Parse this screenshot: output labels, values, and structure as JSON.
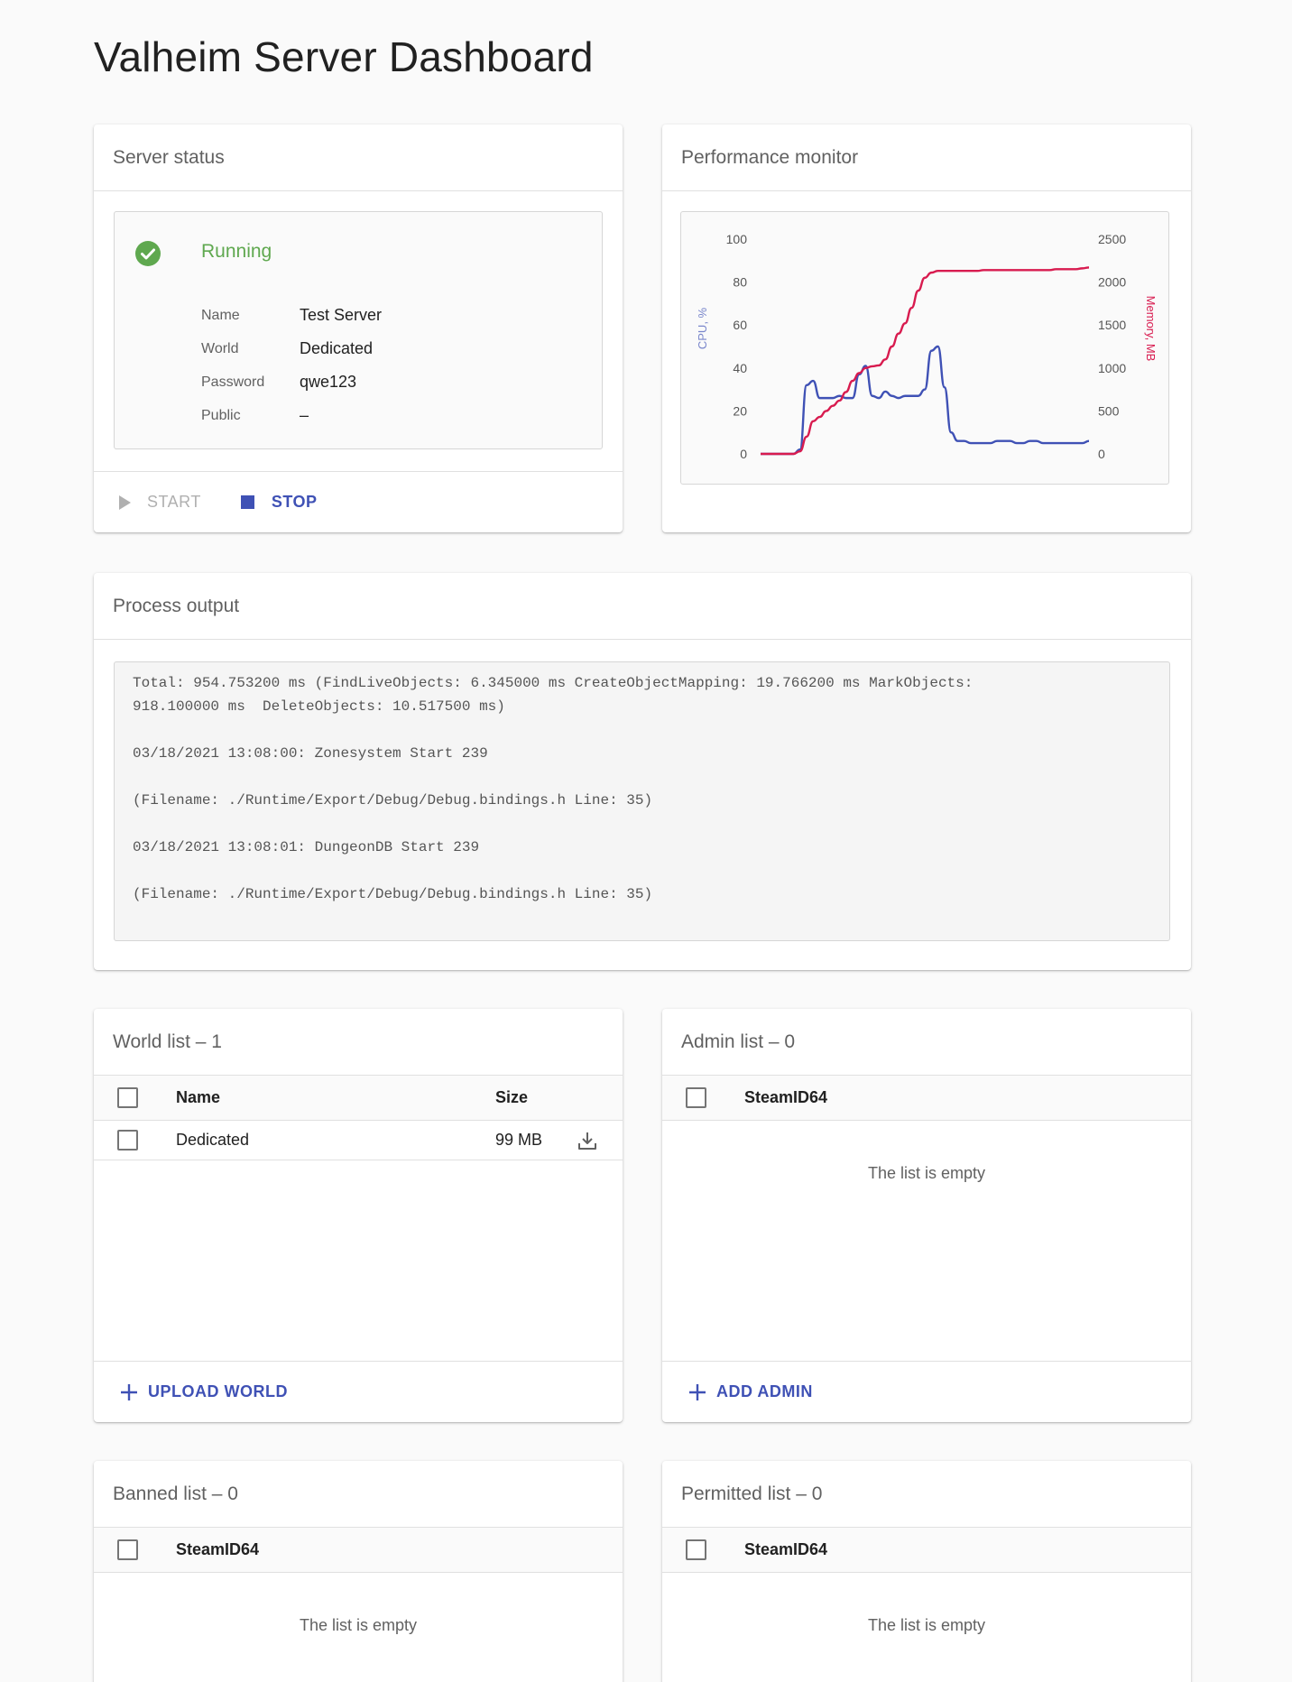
{
  "page": {
    "title": "Valheim Server Dashboard"
  },
  "server_status": {
    "header": "Server status",
    "status_text": "Running",
    "status_color": "#5fa84f",
    "info": [
      {
        "label": "Name",
        "value": "Test Server"
      },
      {
        "label": "World",
        "value": "Dedicated"
      },
      {
        "label": "Password",
        "value": "qwe123"
      },
      {
        "label": "Public",
        "value": "–"
      }
    ],
    "start_label": "START",
    "stop_label": "STOP"
  },
  "performance": {
    "header": "Performance monitor"
  },
  "chart_data": {
    "type": "line",
    "title": "",
    "ylabel": "CPU, %",
    "y2label": "Memory, MB",
    "ylim": [
      0,
      100
    ],
    "y2lim": [
      0,
      2500
    ],
    "yticks": [
      "0",
      "20",
      "40",
      "60",
      "80",
      "100"
    ],
    "y2ticks": [
      "0",
      "500",
      "1000",
      "1500",
      "2000",
      "2500"
    ],
    "grid": false,
    "series": [
      {
        "axis": "left",
        "color": "#3f51b5",
        "x": [
          0,
          1,
          2,
          3,
          4,
          5,
          6,
          7,
          8,
          9,
          10,
          11,
          12,
          13,
          14,
          15,
          16,
          17,
          18,
          19,
          20,
          21,
          22,
          23,
          24,
          25,
          26,
          27,
          28,
          29,
          30,
          31,
          32,
          33,
          34,
          35,
          36,
          37,
          38,
          39,
          40,
          41,
          42,
          43,
          44,
          45,
          46,
          47,
          48,
          49,
          50
        ],
        "values": [
          0,
          0,
          0,
          0,
          0,
          0,
          2,
          32,
          34,
          26,
          26,
          26,
          27,
          26,
          26,
          37,
          41,
          27,
          26,
          29,
          27,
          26,
          27,
          27,
          27,
          30,
          48,
          50,
          31,
          10,
          6,
          6,
          5,
          5,
          5,
          5,
          6,
          6,
          6,
          5,
          5,
          6,
          6,
          5,
          5,
          5,
          5,
          5,
          5,
          5,
          6
        ]
      },
      {
        "axis": "right",
        "color": "#d81b4f",
        "x": [
          0,
          1,
          2,
          3,
          4,
          5,
          6,
          7,
          8,
          9,
          10,
          11,
          12,
          13,
          14,
          15,
          16,
          17,
          18,
          19,
          20,
          21,
          22,
          23,
          24,
          25,
          26,
          27,
          28,
          29,
          30,
          31,
          32,
          33,
          34,
          35,
          36,
          37,
          38,
          39,
          40,
          41,
          42,
          43,
          44,
          45,
          46,
          47,
          48,
          49,
          50
        ],
        "values": [
          0,
          0,
          0,
          0,
          0,
          0,
          30,
          200,
          380,
          430,
          500,
          560,
          620,
          720,
          850,
          940,
          1000,
          1020,
          1030,
          1100,
          1250,
          1400,
          1520,
          1700,
          1900,
          2050,
          2110,
          2130,
          2130,
          2130,
          2130,
          2130,
          2130,
          2130,
          2140,
          2140,
          2140,
          2140,
          2140,
          2140,
          2140,
          2140,
          2140,
          2140,
          2140,
          2150,
          2150,
          2150,
          2150,
          2160,
          2170
        ]
      }
    ]
  },
  "process_output": {
    "header": "Process output",
    "text": "Total: 954.753200 ms (FindLiveObjects: 6.345000 ms CreateObjectMapping: 19.766200 ms MarkObjects:\n918.100000 ms  DeleteObjects: 10.517500 ms)\n\n03/18/2021 13:08:00: Zonesystem Start 239\n\n(Filename: ./Runtime/Export/Debug/Debug.bindings.h Line: 35)\n\n03/18/2021 13:08:01: DungeonDB Start 239\n\n(Filename: ./Runtime/Export/Debug/Debug.bindings.h Line: 35)"
  },
  "world_list": {
    "header": "World list – 1",
    "col_name": "Name",
    "col_size": "Size",
    "rows": [
      {
        "name": "Dedicated",
        "size": "99 MB"
      }
    ],
    "action_label": "UPLOAD WORLD"
  },
  "admin_list": {
    "header": "Admin list – 0",
    "col": "SteamID64",
    "empty": "The list is empty",
    "action_label": "ADD ADMIN"
  },
  "banned_list": {
    "header": "Banned list – 0",
    "col": "SteamID64",
    "empty": "The list is empty"
  },
  "permitted_list": {
    "header": "Permitted list – 0",
    "col": "SteamID64",
    "empty": "The list is empty"
  }
}
